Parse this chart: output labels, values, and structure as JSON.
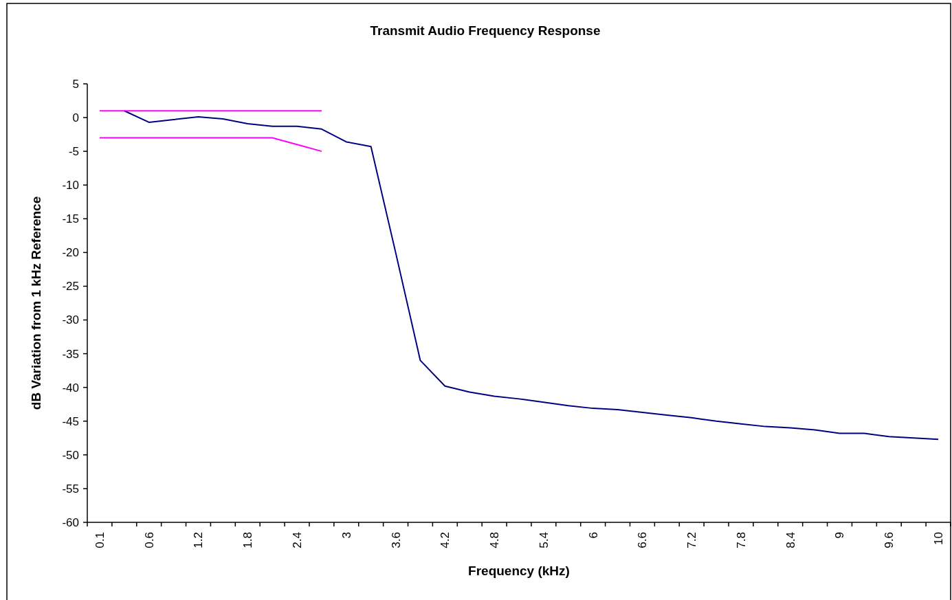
{
  "chart_data": {
    "type": "line",
    "title": "Transmit Audio Frequency Response",
    "xlabel": "Frequency (kHz)",
    "ylabel": "dB Variation from 1 kHz Reference",
    "categories": [
      "0.1",
      null,
      "0.6",
      null,
      "1.2",
      null,
      "1.8",
      null,
      "2.4",
      null,
      "3",
      null,
      "3.6",
      null,
      "4.2",
      null,
      "4.8",
      null,
      "5.4",
      null,
      "6",
      null,
      "6.6",
      null,
      "7.2",
      null,
      "7.8",
      null,
      "8.4",
      null,
      "9",
      null,
      "9.6",
      null,
      "10"
    ],
    "series": [
      {
        "color": "#000080",
        "values": [
          null,
          1,
          -0.7,
          -0.3,
          0.1,
          -0.2,
          -0.9,
          -1.3,
          -1.3,
          -1.7,
          -3.6,
          -4.3,
          -20,
          -36,
          -39.8,
          -40.7,
          -41.3,
          -41.7,
          -42.2,
          -42.7,
          -43.1,
          -43.3,
          -43.7,
          -44.1,
          -44.5,
          -45,
          -45.4,
          -45.8,
          -46,
          -46.3,
          -46.8,
          -46.8,
          -47.3,
          -47.5,
          -47.7
        ]
      },
      {
        "color": "#ff00ff",
        "values": [
          1,
          1,
          1,
          1,
          1,
          1,
          1,
          1,
          1,
          1,
          null,
          null,
          null,
          null,
          null,
          null,
          null,
          null,
          null,
          null,
          null,
          null,
          null,
          null,
          null,
          null,
          null,
          null,
          null,
          null,
          null,
          null,
          null,
          null,
          null
        ]
      },
      {
        "color": "#ff00ff",
        "values": [
          -3,
          -3,
          -3,
          -3,
          -3,
          -3,
          -3,
          -3,
          -4,
          -5,
          null,
          null,
          null,
          null,
          null,
          null,
          null,
          null,
          null,
          null,
          null,
          null,
          null,
          null,
          null,
          null,
          null,
          null,
          null,
          null,
          null,
          null,
          null,
          null,
          null
        ]
      }
    ],
    "ylim": [
      -60,
      5
    ],
    "yticks": [
      -60,
      -55,
      -50,
      -45,
      -40,
      -35,
      -30,
      -25,
      -20,
      -15,
      -10,
      -5,
      0,
      5
    ],
    "marker": "none",
    "line_style": "solid"
  }
}
